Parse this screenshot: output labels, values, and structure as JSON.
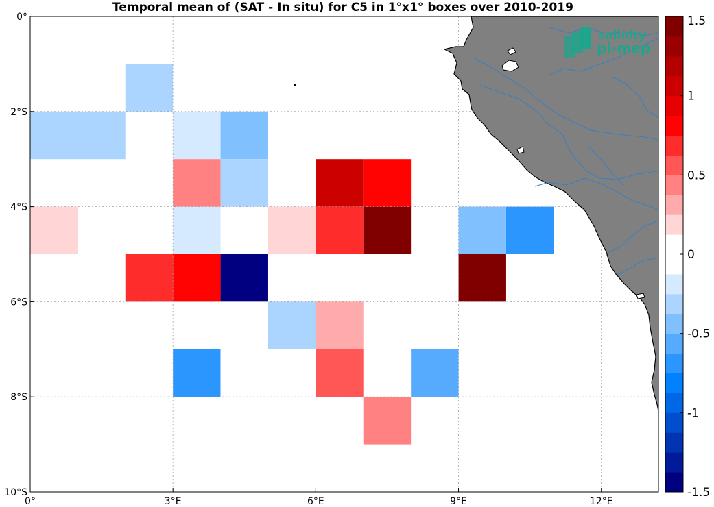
{
  "title": "Temporal mean of (SAT - In situ) for C5 in 1°x1° boxes over 2010-2019",
  "logo": {
    "line1": "salinity",
    "line2": "pi-mep"
  },
  "colors": {
    "land": "#808080",
    "coast": "#000000",
    "river": "#3a7fc0",
    "grid": "#a0a0a0",
    "logo": "#1ea58c"
  },
  "chart_data": {
    "type": "heatmap",
    "title": "Temporal mean of (SAT - In situ) for C5 in 1°x1° boxes over 2010-2019",
    "xlim": [
      0,
      13.2
    ],
    "ylim": [
      -10,
      0
    ],
    "x_ticks": [
      {
        "value": 0,
        "label": "0°"
      },
      {
        "value": 3,
        "label": "3°E"
      },
      {
        "value": 6,
        "label": "6°E"
      },
      {
        "value": 9,
        "label": "9°E"
      },
      {
        "value": 12,
        "label": "12°E"
      }
    ],
    "y_ticks": [
      {
        "value": 0,
        "label": "0°"
      },
      {
        "value": -2,
        "label": "2°S"
      },
      {
        "value": -4,
        "label": "4°S"
      },
      {
        "value": -6,
        "label": "6°S"
      },
      {
        "value": -8,
        "label": "8°S"
      },
      {
        "value": -10,
        "label": "10°S"
      }
    ],
    "grid": true,
    "colorbar": {
      "min": -1.5,
      "max": 1.5,
      "levels": 24,
      "ticks": [
        {
          "value": 1.5,
          "label": "1.5"
        },
        {
          "value": 1,
          "label": "1"
        },
        {
          "value": 0.5,
          "label": "0.5"
        },
        {
          "value": 0,
          "label": "0"
        },
        {
          "value": -0.5,
          "label": "-0.5"
        },
        {
          "value": -1,
          "label": "-1"
        },
        {
          "value": -1.5,
          "label": "-1.5"
        }
      ]
    },
    "cells": [
      {
        "lon": 3,
        "lat": 0,
        "value": -0.06
      },
      {
        "lon": 2,
        "lat": -1,
        "value": -0.3
      },
      {
        "lon": 3,
        "lat": -1,
        "value": -0.06
      },
      {
        "lon": 0,
        "lat": -2,
        "value": -0.3
      },
      {
        "lon": 1,
        "lat": -2,
        "value": -0.3
      },
      {
        "lon": 3,
        "lat": -2,
        "value": -0.2
      },
      {
        "lon": 4,
        "lat": -2,
        "value": -0.45
      },
      {
        "lon": 3,
        "lat": -3,
        "value": 0.45
      },
      {
        "lon": 4,
        "lat": -3,
        "value": -0.3
      },
      {
        "lon": 6,
        "lat": -3,
        "value": 1.07
      },
      {
        "lon": 7,
        "lat": -3,
        "value": 0.8
      },
      {
        "lon": 0,
        "lat": -4,
        "value": 0.2
      },
      {
        "lon": 3,
        "lat": -4,
        "value": -0.2
      },
      {
        "lon": 5,
        "lat": -4,
        "value": 0.2
      },
      {
        "lon": 6,
        "lat": -4,
        "value": 0.7
      },
      {
        "lon": 7,
        "lat": -4,
        "value": 1.45
      },
      {
        "lon": 9,
        "lat": -4,
        "value": -0.4
      },
      {
        "lon": 10,
        "lat": -4,
        "value": -0.7
      },
      {
        "lon": 2,
        "lat": -5,
        "value": 0.7
      },
      {
        "lon": 3,
        "lat": -5,
        "value": 0.8
      },
      {
        "lon": 4,
        "lat": -5,
        "value": -1.45
      },
      {
        "lon": 9,
        "lat": -5,
        "value": 1.45
      },
      {
        "lon": 4,
        "lat": -6,
        "value": 0.1
      },
      {
        "lon": 5,
        "lat": -6,
        "value": -0.3
      },
      {
        "lon": 6,
        "lat": -6,
        "value": 0.25
      },
      {
        "lon": 2,
        "lat": -7,
        "value": 0.1
      },
      {
        "lon": 3,
        "lat": -7,
        "value": -0.7
      },
      {
        "lon": 4,
        "lat": -7,
        "value": -0.06
      },
      {
        "lon": 6,
        "lat": -7,
        "value": 0.55
      },
      {
        "lon": 8,
        "lat": -7,
        "value": -0.55
      },
      {
        "lon": 0,
        "lat": -8,
        "value": -0.06
      },
      {
        "lon": 6,
        "lat": -8,
        "value": -0.06
      },
      {
        "lon": 7,
        "lat": -8,
        "value": 0.45
      }
    ]
  }
}
